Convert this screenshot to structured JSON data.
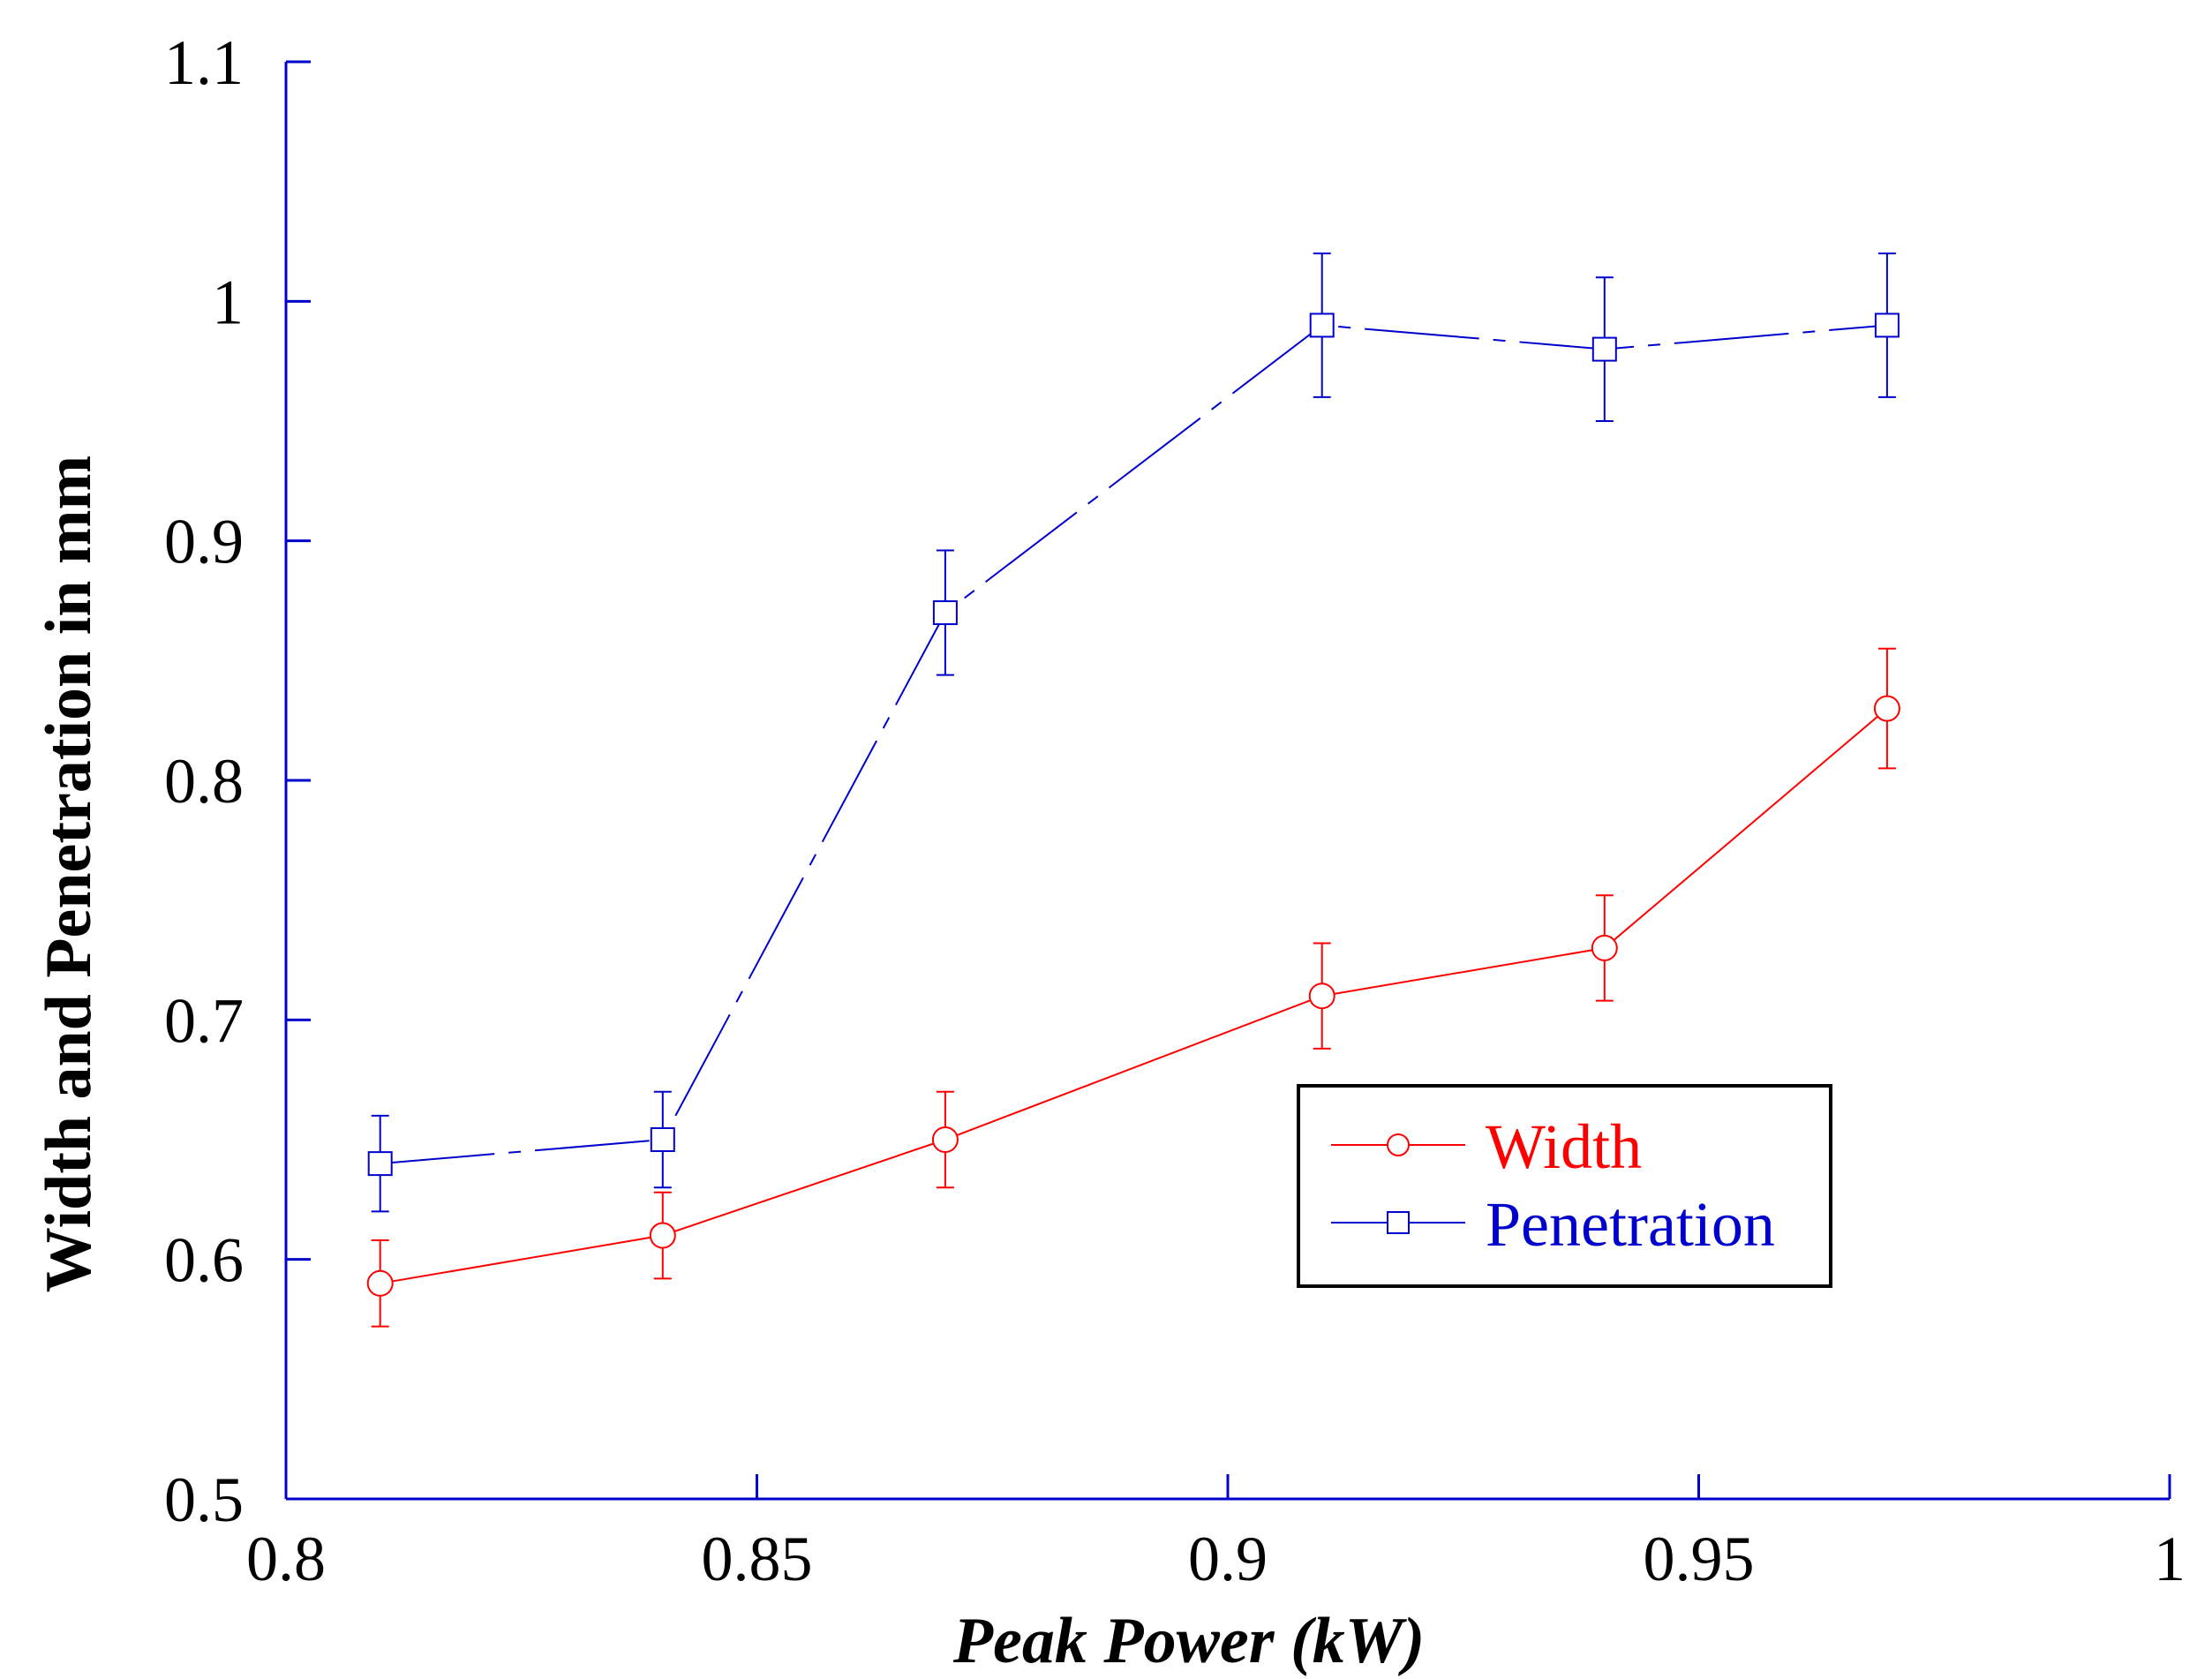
{
  "chart_data": {
    "type": "line",
    "title": "",
    "xlabel": "Peak Power (kW)",
    "ylabel": "Width and Penetration in mm",
    "xlim": [
      0.8,
      1.0
    ],
    "ylim": [
      0.5,
      1.1
    ],
    "xticks": [
      0.8,
      0.85,
      0.9,
      0.95,
      1.0
    ],
    "xtick_labels": [
      "0.8",
      "0.85",
      "0.9",
      "0.95",
      "1"
    ],
    "yticks": [
      0.5,
      0.6,
      0.7,
      0.8,
      0.9,
      1.0,
      1.1
    ],
    "ytick_labels": [
      "0.5",
      "0.6",
      "0.7",
      "0.8",
      "0.9",
      "1",
      "1.1"
    ],
    "grid": false,
    "legend_position": "center-right",
    "series": [
      {
        "name": "Width",
        "color": "#ff0000",
        "marker": "circle",
        "line_style": "solid",
        "x": [
          0.81,
          0.84,
          0.87,
          0.91,
          0.94,
          0.97
        ],
        "y": [
          0.59,
          0.61,
          0.65,
          0.71,
          0.73,
          0.83
        ],
        "err": [
          0.018,
          0.018,
          0.02,
          0.022,
          0.022,
          0.025
        ]
      },
      {
        "name": "Penetration",
        "color": "#0000cc",
        "marker": "square",
        "line_style": "dashed",
        "x": [
          0.81,
          0.84,
          0.87,
          0.91,
          0.94,
          0.97
        ],
        "y": [
          0.64,
          0.65,
          0.87,
          0.99,
          0.98,
          0.99
        ],
        "err": [
          0.02,
          0.02,
          0.026,
          0.03,
          0.03,
          0.03
        ]
      }
    ]
  },
  "axis_color": "#0000cc"
}
